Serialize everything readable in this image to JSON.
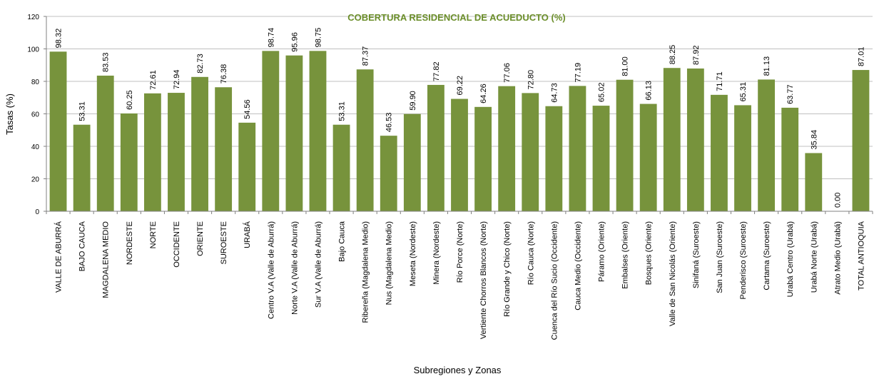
{
  "chart_data": {
    "type": "bar",
    "title": "COBERTURA RESIDENCIAL DE ACUEDUCTO (%)",
    "xlabel": "Subregiones y Zonas",
    "ylabel": "Tasas (%)",
    "ylim": [
      0,
      120
    ],
    "yticks": [
      0,
      20,
      40,
      60,
      80,
      100,
      120
    ],
    "grid": true,
    "bar_color": "#77933c",
    "title_color": "#6b8e2a",
    "categories": [
      "VALLE DE ABURRÁ",
      "BAJO CAUCA",
      "MAGDALENA MEDIO",
      "NORDESTE",
      "NORTE",
      "OCCIDENTE",
      "ORIENTE",
      "SUROESTE",
      "URABÁ",
      "Centro V.A (Valle de Aburrá)",
      "Norte V.A (Valle de Aburrá)",
      "Sur V.A (Valle de Aburrá)",
      "Bajo Cauca",
      "Ribereña  (Magdalena Medio)",
      "Nus  (Magdalena Medio)",
      "Meseta  (Nordeste)",
      "Minera  (Nordeste)",
      "Río Porce   (Norte)",
      "Vertiente Chorros Blancos  (Norte)",
      "Río Grande y Chico  (Norte)",
      "Río Cauca  (Norte)",
      "Cuenca del Río Sucio  (Occidente)",
      "Cauca Medio  (Occidente)",
      "Páramo  (Oriente)",
      "Embalses  (Oriente)",
      "Bosques  (Oriente)",
      "Valle de San Nicolás  (Oriente)",
      "Sinifaná  (Suroeste)",
      "San Juan  (Suroeste)",
      "Penderisco  (Suroeste)",
      "Cartama  (Suroeste)",
      "Urabá Centro  (Urabá)",
      "Urabá Norte  (Urabá)",
      "Atrato Medio  (Urabá)",
      "TOTAL ANTIOQUIA"
    ],
    "values": [
      98.32,
      53.31,
      83.53,
      60.25,
      72.61,
      72.94,
      82.73,
      76.38,
      54.56,
      98.74,
      95.96,
      98.75,
      53.31,
      87.37,
      46.53,
      59.9,
      77.82,
      69.22,
      64.26,
      77.06,
      72.8,
      64.73,
      77.19,
      65.02,
      81.0,
      66.13,
      88.25,
      87.92,
      71.71,
      65.31,
      81.13,
      63.77,
      35.84,
      0.0,
      87.01
    ],
    "labels": [
      "98.32",
      "53.31",
      "83.53",
      "60.25",
      "72.61",
      "72.94",
      "82.73",
      "76.38",
      "54.56",
      "98.74",
      "95.96",
      "98.75",
      "53.31",
      "87.37",
      "46.53",
      "59.90",
      "77.82",
      "69.22",
      "64.26",
      "77.06",
      "72.80",
      "64.73",
      "77.19",
      "65.02",
      "81.00",
      "66.13",
      "88.25",
      "87.92",
      "71.71",
      "65.31",
      "81.13",
      "63.77",
      "35.84",
      "0.00",
      "87.01"
    ]
  }
}
